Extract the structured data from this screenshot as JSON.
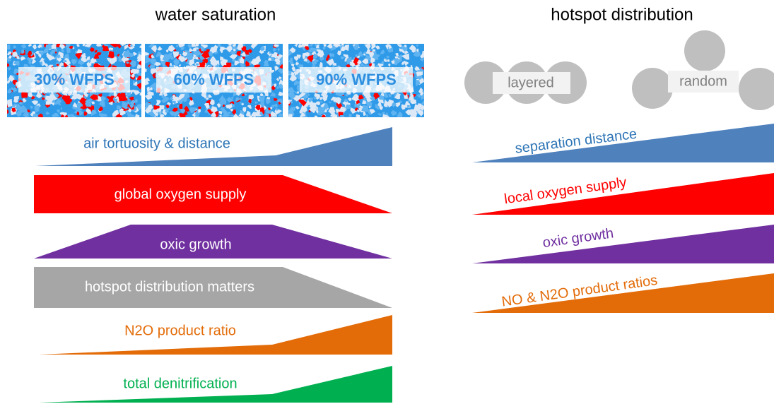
{
  "left": {
    "title": "water saturation",
    "panels": [
      "30% WFPS",
      "60% WFPS",
      "90% WFPS"
    ],
    "bars": [
      "air tortuosity & distance",
      "global oxygen supply",
      "oxic growth",
      "hotspot distribution matters",
      "N2O product ratio",
      "total denitrification"
    ]
  },
  "right": {
    "title": "hotspot distribution",
    "arrangements": [
      "layered",
      "random"
    ],
    "bars": [
      "separation distance",
      "local oxygen supply",
      "oxic growth",
      "NO & N2O product ratios"
    ]
  }
}
